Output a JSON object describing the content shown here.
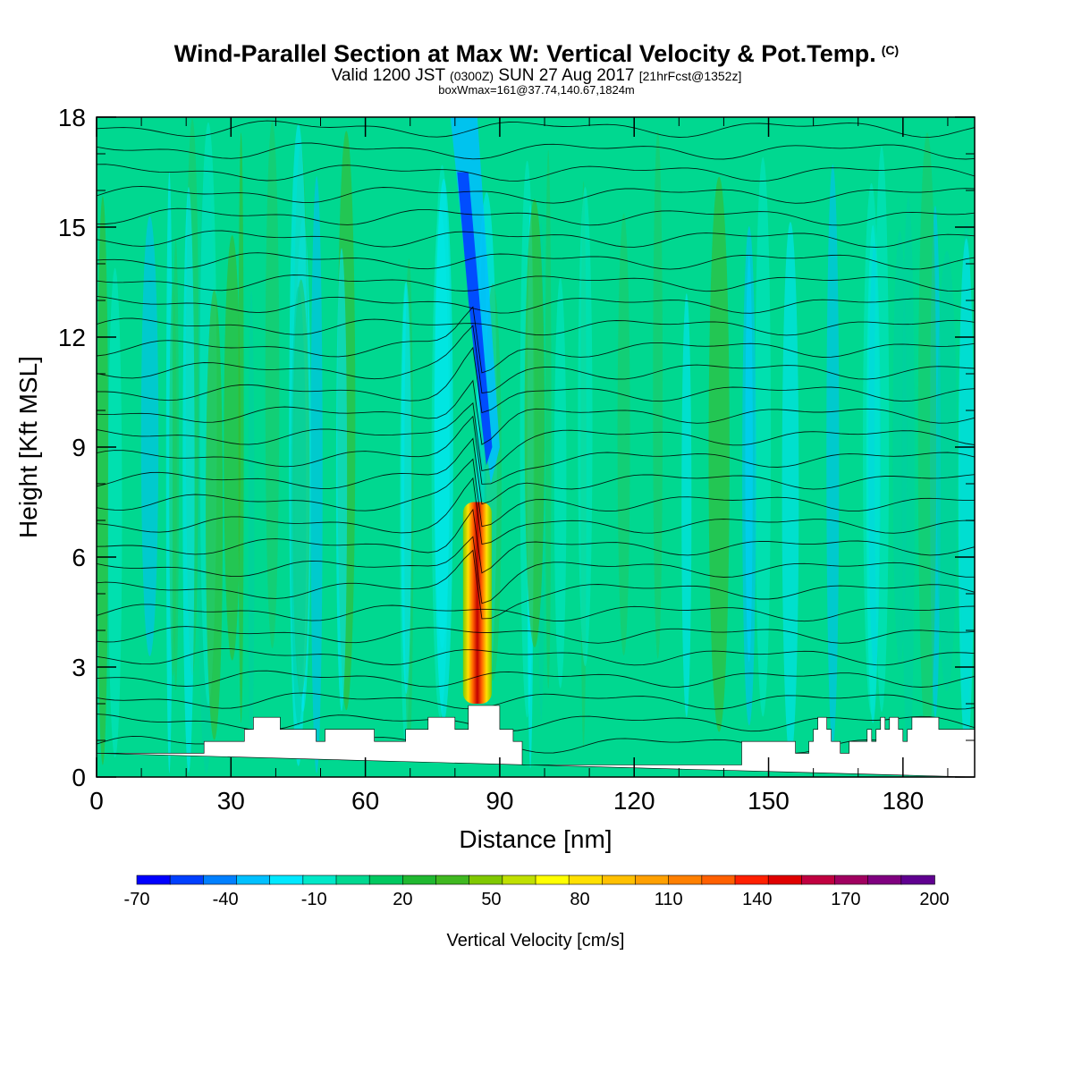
{
  "title": {
    "main": "Wind-Parallel Section at Max W: Vertical Velocity & Pot.Temp.",
    "copyright": "(C)",
    "valid_prefix": "Valid 1200 JST",
    "valid_utc": "(0300Z)",
    "valid_date": "SUN 27 Aug 2017",
    "forecast": "[21hrFcst@1352z]",
    "boxwmax": "boxWmax=161@37.74,140.67,1824m"
  },
  "chart_data": {
    "type": "heatmap",
    "xlabel": "Distance [nm]",
    "ylabel": "Height [Kft MSL]",
    "xlim": [
      0,
      196
    ],
    "ylim": [
      0,
      18
    ],
    "x_ticks": [
      "0",
      "30",
      "60",
      "90",
      "120",
      "150",
      "180"
    ],
    "y_ticks": [
      "0",
      "3",
      "6",
      "9",
      "12",
      "15",
      "18"
    ],
    "colorbar": {
      "label": "Vertical Velocity [cm/s]",
      "tick_labels": [
        "-70",
        "-40",
        "-10",
        "20",
        "50",
        "80",
        "110",
        "140",
        "170",
        "200"
      ],
      "colors": [
        "#0000ff",
        "#0040ff",
        "#0080ff",
        "#00c0ff",
        "#00e8ff",
        "#00e8c8",
        "#00d890",
        "#00c860",
        "#20b830",
        "#40b820",
        "#80c800",
        "#c0e000",
        "#ffff00",
        "#ffe000",
        "#ffc000",
        "#ffa000",
        "#ff8000",
        "#ff6000",
        "#ff2000",
        "#e00000",
        "#c00040",
        "#a00060",
        "#800080",
        "#600090"
      ]
    },
    "features": [
      {
        "name": "updraft",
        "x": 85,
        "y_range": [
          2,
          7.5
        ],
        "w_max": 161
      },
      {
        "name": "downdraft",
        "x_range": [
          82,
          90
        ],
        "y_range": [
          8,
          18
        ],
        "w_min": -50
      }
    ],
    "terrain": [
      [
        0,
        0.65
      ],
      [
        24,
        0.65
      ],
      [
        24,
        0.97
      ],
      [
        33,
        0.97
      ],
      [
        33,
        1.3
      ],
      [
        35,
        1.3
      ],
      [
        35,
        1.63
      ],
      [
        41,
        1.63
      ],
      [
        41,
        1.3
      ],
      [
        49,
        1.3
      ],
      [
        49,
        0.97
      ],
      [
        51,
        0.97
      ],
      [
        51,
        1.3
      ],
      [
        62,
        1.3
      ],
      [
        62,
        0.97
      ],
      [
        69,
        0.97
      ],
      [
        69,
        1.3
      ],
      [
        74,
        1.3
      ],
      [
        74,
        1.63
      ],
      [
        80,
        1.63
      ],
      [
        80,
        1.3
      ],
      [
        83,
        1.3
      ],
      [
        83,
        1.95
      ],
      [
        90,
        1.95
      ],
      [
        90,
        1.3
      ],
      [
        93,
        1.3
      ],
      [
        93,
        0.97
      ],
      [
        95,
        0.97
      ],
      [
        95,
        0.33
      ],
      [
        144,
        0.33
      ],
      [
        144,
        0.97
      ],
      [
        156,
        0.97
      ],
      [
        156,
        0.65
      ],
      [
        159,
        0.65
      ],
      [
        159,
        0.97
      ],
      [
        160,
        0.97
      ],
      [
        160,
        1.3
      ],
      [
        161,
        1.3
      ],
      [
        161,
        1.63
      ],
      [
        163,
        1.63
      ],
      [
        163,
        1.3
      ],
      [
        164,
        1.3
      ],
      [
        164,
        0.97
      ],
      [
        166,
        0.97
      ],
      [
        166,
        0.65
      ],
      [
        168,
        0.65
      ],
      [
        168,
        0.97
      ],
      [
        172,
        0.97
      ],
      [
        172,
        1.3
      ],
      [
        173,
        1.3
      ],
      [
        173,
        0.97
      ],
      [
        174,
        0.97
      ],
      [
        174,
        1.3
      ],
      [
        175,
        1.3
      ],
      [
        175,
        1.63
      ],
      [
        176,
        1.63
      ],
      [
        176,
        1.3
      ],
      [
        177,
        1.3
      ],
      [
        177,
        1.63
      ],
      [
        179,
        1.63
      ],
      [
        179,
        1.3
      ],
      [
        180,
        1.3
      ],
      [
        180,
        0.97
      ],
      [
        181,
        0.97
      ],
      [
        181,
        1.3
      ],
      [
        182,
        1.3
      ],
      [
        182,
        1.63
      ],
      [
        188,
        1.63
      ],
      [
        188,
        1.3
      ],
      [
        196,
        1.3
      ],
      [
        196,
        0
      ]
    ]
  }
}
